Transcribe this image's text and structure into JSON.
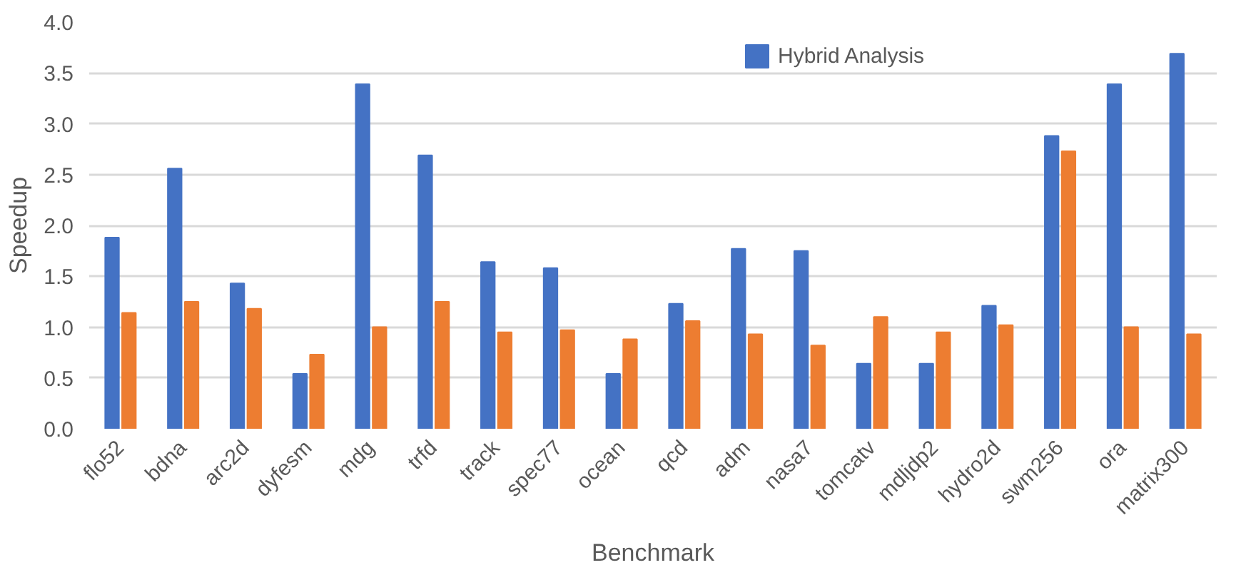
{
  "chart_data": {
    "type": "bar",
    "xlabel": "Benchmark",
    "ylabel": "Speedup",
    "categories": [
      "flo52",
      "bdna",
      "arc2d",
      "dyfesm",
      "mdg",
      "trfd",
      "track",
      "spec77",
      "ocean",
      "qcd",
      "adm",
      "nasa7",
      "tomcatv",
      "mdljdp2",
      "hydro2d",
      "swm256",
      "ora",
      "matrix300"
    ],
    "series": [
      {
        "name": "Hybrid Analysis",
        "color": "#4472c4",
        "values": [
          1.88,
          2.56,
          1.43,
          0.54,
          3.39,
          2.69,
          1.64,
          1.58,
          0.54,
          1.23,
          1.77,
          1.75,
          0.64,
          0.64,
          1.21,
          2.88,
          3.39,
          3.69
        ]
      },
      {
        "color": "#ed7d31",
        "values": [
          1.14,
          1.25,
          1.18,
          0.73,
          1.0,
          1.25,
          0.95,
          0.97,
          0.88,
          1.06,
          0.93,
          0.82,
          1.1,
          0.95,
          1.02,
          2.73,
          1.0,
          0.93
        ]
      }
    ],
    "ylim": [
      0,
      4
    ],
    "yticks": [
      {
        "value": 0,
        "label": "0.0"
      },
      {
        "value": 0.5,
        "label": "0.5"
      },
      {
        "value": 1,
        "label": "1.0"
      },
      {
        "value": 1.5,
        "label": "1.5"
      },
      {
        "value": 2,
        "label": "2.0"
      },
      {
        "value": 2.5,
        "label": "2.5"
      },
      {
        "value": 3,
        "label": "3.0"
      },
      {
        "value": 3.5,
        "label": "3.5"
      },
      {
        "value": 4,
        "label": "4.0"
      }
    ],
    "grid": "y",
    "legend": "top right"
  }
}
